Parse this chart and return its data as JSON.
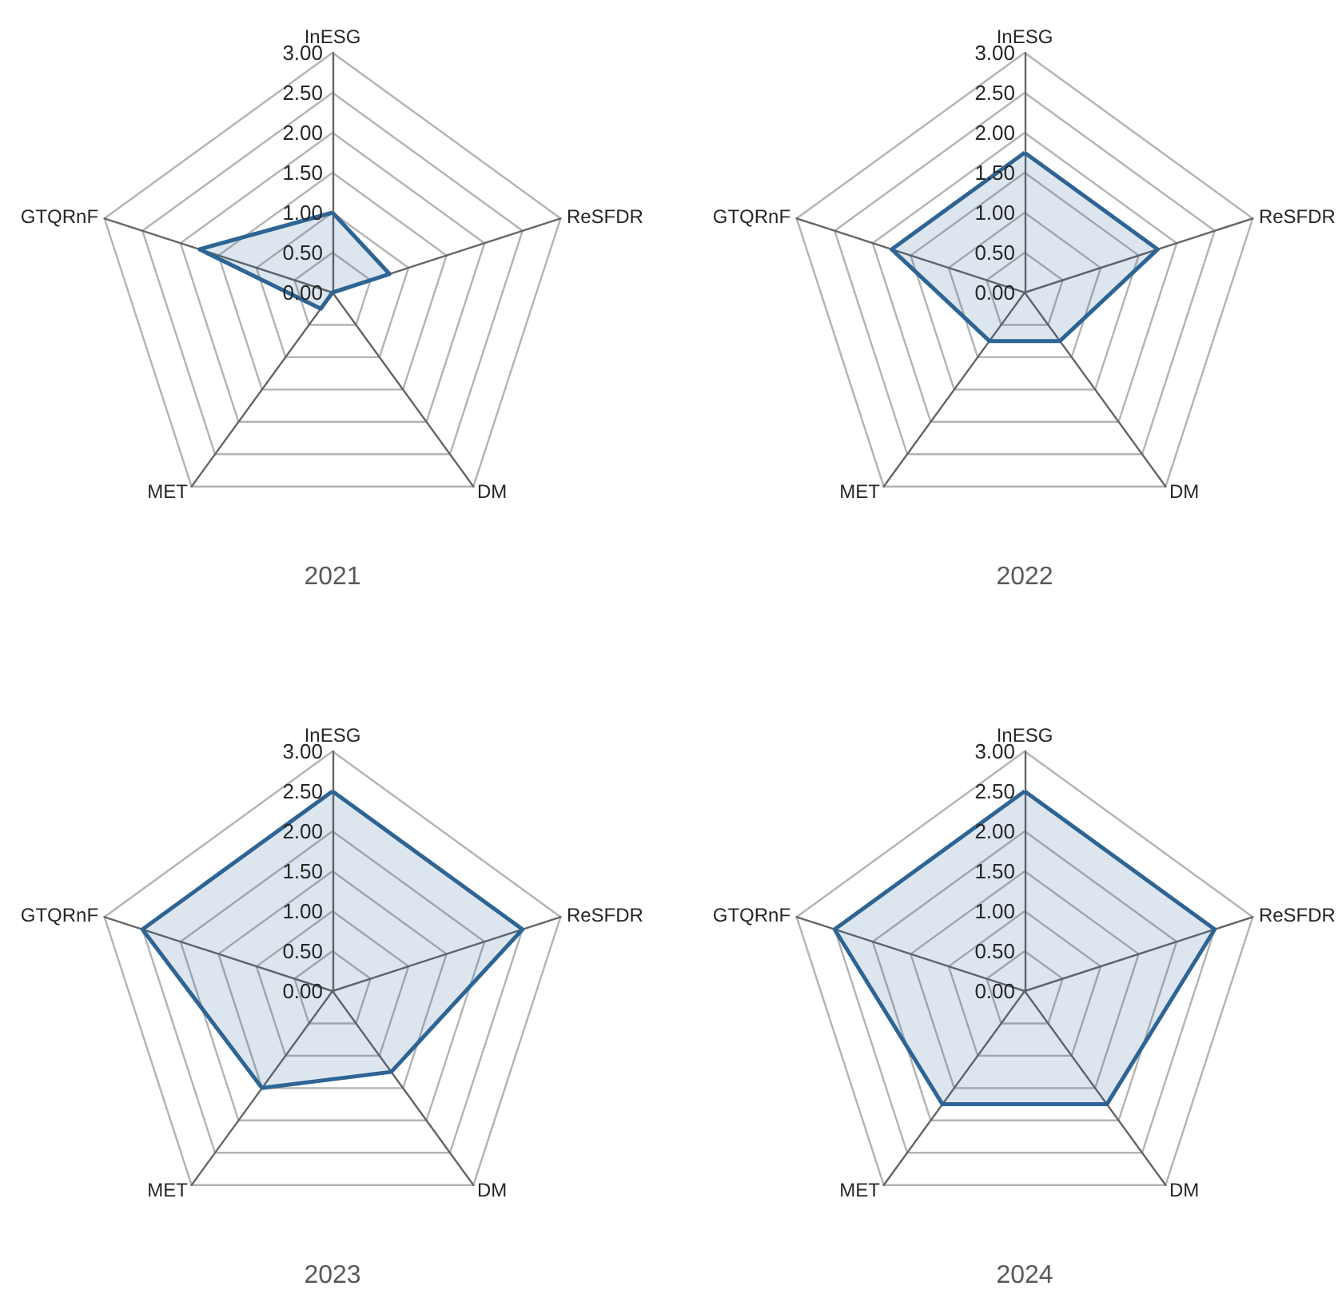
{
  "chart_data": [
    {
      "type": "radar",
      "title": "2021",
      "categories": [
        "InESG",
        "ReSFDR",
        "DM",
        "MET",
        "GTQRnF"
      ],
      "ylim": [
        0,
        3
      ],
      "yticks": [
        {
          "value": 0,
          "label": "0.00"
        },
        {
          "value": 0.5,
          "label": "0.50"
        },
        {
          "value": 1,
          "label": "1.00"
        },
        {
          "value": 1.5,
          "label": "1.50"
        },
        {
          "value": 2,
          "label": "2.00"
        },
        {
          "value": 2.5,
          "label": "2.50"
        },
        {
          "value": 3,
          "label": "3.00"
        }
      ],
      "grid": true,
      "legend": false,
      "marker": "none",
      "series": [
        {
          "color": "#2e6594",
          "values": [
            1,
            0.75,
            0,
            0.25,
            1.75
          ]
        }
      ]
    },
    {
      "type": "radar",
      "title": "2022",
      "categories": [
        "InESG",
        "ReSFDR",
        "DM",
        "MET",
        "GTQRnF"
      ],
      "ylim": [
        0,
        3
      ],
      "yticks": [
        {
          "value": 0,
          "label": "0.00"
        },
        {
          "value": 0.5,
          "label": "0.50"
        },
        {
          "value": 1,
          "label": "1.00"
        },
        {
          "value": 1.5,
          "label": "1.50"
        },
        {
          "value": 2,
          "label": "2.00"
        },
        {
          "value": 2.5,
          "label": "2.50"
        },
        {
          "value": 3,
          "label": "3.00"
        }
      ],
      "grid": true,
      "legend": false,
      "marker": "none",
      "series": [
        {
          "color": "#2e6594",
          "values": [
            1.75,
            1.75,
            0.75,
            0.75,
            1.75
          ]
        }
      ]
    },
    {
      "type": "radar",
      "title": "2023",
      "categories": [
        "InESG",
        "ReSFDR",
        "DM",
        "MET",
        "GTQRnF"
      ],
      "ylim": [
        0,
        3
      ],
      "yticks": [
        {
          "value": 0,
          "label": "0.00"
        },
        {
          "value": 0.5,
          "label": "0.50"
        },
        {
          "value": 1,
          "label": "1.00"
        },
        {
          "value": 1.5,
          "label": "1.50"
        },
        {
          "value": 2,
          "label": "2.00"
        },
        {
          "value": 2.5,
          "label": "2.50"
        },
        {
          "value": 3,
          "label": "3.00"
        }
      ],
      "grid": true,
      "legend": false,
      "marker": "none",
      "series": [
        {
          "color": "#2e6594",
          "values": [
            2.5,
            2.5,
            1.25,
            1.5,
            2.5
          ]
        }
      ]
    },
    {
      "type": "radar",
      "title": "2024",
      "categories": [
        "InESG",
        "ReSFDR",
        "DM",
        "MET",
        "GTQRnF"
      ],
      "ylim": [
        0,
        3
      ],
      "yticks": [
        {
          "value": 0,
          "label": "0.00"
        },
        {
          "value": 0.5,
          "label": "0.50"
        },
        {
          "value": 1,
          "label": "1.00"
        },
        {
          "value": 1.5,
          "label": "1.50"
        },
        {
          "value": 2,
          "label": "2.00"
        },
        {
          "value": 2.5,
          "label": "2.50"
        },
        {
          "value": 3,
          "label": "3.00"
        }
      ],
      "grid": true,
      "legend": false,
      "marker": "none",
      "series": [
        {
          "color": "#2e6594",
          "values": [
            2.5,
            2.5,
            1.75,
            1.75,
            2.5
          ]
        }
      ]
    }
  ]
}
